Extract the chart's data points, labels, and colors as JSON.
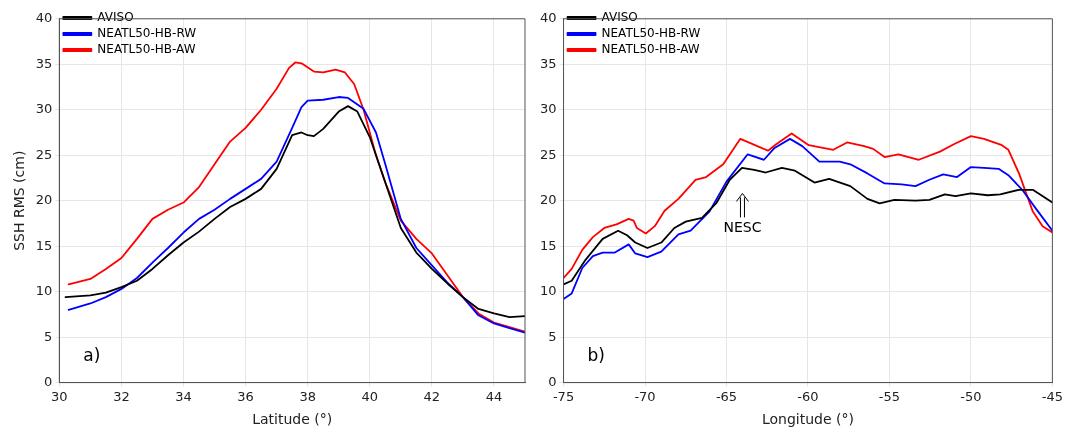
{
  "chart_data": [
    {
      "type": "line",
      "xlabel": "Latitude (°)",
      "ylabel": "SSH RMS (cm)",
      "xlim": [
        30,
        45
      ],
      "xticks": [
        30,
        32,
        34,
        36,
        38,
        40,
        42,
        44
      ],
      "ylim": [
        0,
        40
      ],
      "yticks": [
        0,
        5,
        10,
        15,
        20,
        25,
        30,
        35,
        40
      ],
      "grid": true,
      "legend": "top left",
      "marker": "none",
      "line_style": "solid",
      "annotations": [
        "a)"
      ],
      "series": [
        {
          "name": "AVISO",
          "color": "#000000",
          "x": [
            30.2,
            31,
            31.5,
            32,
            32.5,
            33,
            33.5,
            34,
            34.5,
            35,
            35.5,
            36,
            36.5,
            37,
            37.5,
            37.8,
            38,
            38.2,
            38.5,
            39,
            39.3,
            39.6,
            40,
            40.5,
            41,
            41.5,
            42,
            42.5,
            43,
            43.5,
            44,
            44.5,
            45
          ],
          "values": [
            9.4,
            9.6,
            9.9,
            10.5,
            11.2,
            12.5,
            14,
            15.4,
            16.6,
            18,
            19.3,
            20.2,
            21.3,
            23.5,
            27.2,
            27.5,
            27.2,
            27.1,
            27.9,
            29.8,
            30.4,
            29.8,
            27,
            22,
            17,
            14.3,
            12.5,
            10.9,
            9.4,
            8.1,
            7.6,
            7.2,
            7.3
          ]
        },
        {
          "name": "NEATL50-HB-RW",
          "color": "#0000ff",
          "x": [
            30.3,
            31,
            31.5,
            32,
            32.5,
            33,
            33.5,
            34,
            34.5,
            35,
            35.5,
            36,
            36.5,
            37,
            37.5,
            37.8,
            38,
            38.5,
            39,
            39.3,
            39.8,
            40.2,
            40.5,
            41,
            41.5,
            42,
            42.5,
            43,
            43.5,
            44,
            44.5,
            45
          ],
          "values": [
            8,
            8.7,
            9.4,
            10.3,
            11.5,
            13.2,
            14.8,
            16.5,
            18,
            19,
            20.2,
            21.3,
            22.4,
            24.3,
            28,
            30.3,
            31,
            31.1,
            31.4,
            31.3,
            30.1,
            27.5,
            24,
            18,
            14.8,
            12.9,
            11,
            9.4,
            7.4,
            6.5,
            6,
            5.5
          ]
        },
        {
          "name": "NEATL50-HB-AW",
          "color": "#ff0000",
          "x": [
            30.3,
            31,
            31.5,
            32,
            32.5,
            33,
            33.5,
            34,
            34.5,
            35,
            35.5,
            36,
            36.5,
            37,
            37.4,
            37.6,
            37.8,
            38.2,
            38.5,
            38.9,
            39.2,
            39.5,
            39.8,
            40.2,
            40.5,
            41,
            41.5,
            42,
            42.5,
            43,
            43.5,
            44,
            44.5,
            45
          ],
          "values": [
            10.8,
            11.4,
            12.5,
            13.7,
            15.8,
            18,
            19,
            19.8,
            21.5,
            24,
            26.5,
            28,
            30,
            32.3,
            34.6,
            35.2,
            35.1,
            34.2,
            34.1,
            34.4,
            34.1,
            32.8,
            30,
            25,
            22,
            17.8,
            15.8,
            14.2,
            11.8,
            9.4,
            7.6,
            6.6,
            6.1,
            5.6
          ]
        }
      ]
    },
    {
      "type": "line",
      "xlabel": "Longitude (°)",
      "xlim": [
        -75,
        -45
      ],
      "xticks": [
        -75,
        -70,
        -65,
        -60,
        -55,
        -50,
        -45
      ],
      "ylim": [
        0,
        40
      ],
      "yticks": [
        0,
        5,
        10,
        15,
        20,
        25,
        30,
        35,
        40
      ],
      "grid": true,
      "legend": "top left",
      "marker": "none",
      "line_style": "solid",
      "annotations": [
        "b)",
        "NESC"
      ],
      "series": [
        {
          "name": "AVISO",
          "color": "#000000",
          "x": [
            -75,
            -74.5,
            -73.65,
            -72.6,
            -71.65,
            -71.1,
            -70.6,
            -69.85,
            -69,
            -68.2,
            -67.5,
            -66.5,
            -65.6,
            -64.8,
            -64.05,
            -63.3,
            -62.6,
            -61.6,
            -60.8,
            -59.6,
            -58.7,
            -57.4,
            -56.35,
            -55.6,
            -54.7,
            -53.4,
            -52.55,
            -51.6,
            -50.95,
            -50,
            -48.97,
            -48.2,
            -47.05,
            -46.2,
            -45
          ],
          "values": [
            10.8,
            11.2,
            13.5,
            15.8,
            16.7,
            16.2,
            15.4,
            14.8,
            15.4,
            17,
            17.7,
            18.1,
            19.8,
            22.3,
            23.6,
            23.4,
            23.1,
            23.6,
            23.3,
            22,
            22.4,
            21.6,
            20.2,
            19.7,
            20.1,
            20,
            20.1,
            20.7,
            20.5,
            20.8,
            20.6,
            20.7,
            21.2,
            21.2,
            19.8
          ]
        },
        {
          "name": "NEATL50-HB-RW",
          "color": "#0000ff",
          "x": [
            -75,
            -74.5,
            -73.85,
            -73.2,
            -72.6,
            -71.85,
            -71,
            -70.6,
            -69.85,
            -69,
            -67.95,
            -67.2,
            -66.05,
            -65,
            -63.7,
            -62.7,
            -62.05,
            -61.1,
            -60.35,
            -59.3,
            -58.05,
            -57.4,
            -56.35,
            -55.3,
            -54.25,
            -53.4,
            -52.55,
            -51.7,
            -50.85,
            -50,
            -49.2,
            -48.3,
            -47.7,
            -46.85,
            -46,
            -45
          ],
          "values": [
            9.2,
            9.8,
            12.6,
            13.9,
            14.3,
            14.3,
            15.2,
            14.2,
            13.8,
            14.4,
            16.3,
            16.7,
            18.8,
            22.1,
            25.1,
            24.5,
            25.8,
            26.8,
            26,
            24.3,
            24.3,
            24,
            23,
            21.9,
            21.8,
            21.6,
            22.3,
            22.9,
            22.6,
            23.7,
            23.6,
            23.5,
            22.8,
            21.2,
            19.1,
            16.7
          ]
        },
        {
          "name": "NEATL50-HB-AW",
          "color": "#ff0000",
          "x": [
            -75,
            -74.5,
            -73.85,
            -73.2,
            -72.5,
            -71.75,
            -71,
            -70.7,
            -70.5,
            -69.95,
            -69.4,
            -68.8,
            -67.95,
            -66.9,
            -66.25,
            -65.2,
            -64.15,
            -63.5,
            -62.45,
            -61.95,
            -61,
            -59.95,
            -58.45,
            -57.6,
            -56.55,
            -56,
            -55.3,
            -54.45,
            -53.2,
            -51.9,
            -51.05,
            -50,
            -49.2,
            -48.1,
            -47.7,
            -47.05,
            -46.2,
            -45.6,
            -45
          ],
          "values": [
            11.5,
            12.5,
            14.6,
            16,
            17,
            17.4,
            18,
            17.8,
            17,
            16.4,
            17.2,
            18.9,
            20.2,
            22.3,
            22.6,
            24,
            26.8,
            26.3,
            25.5,
            26.2,
            27.4,
            26.1,
            25.6,
            26.4,
            26,
            25.7,
            24.8,
            25.1,
            24.5,
            25.4,
            26.2,
            27.1,
            26.8,
            26.1,
            25.6,
            23,
            18.8,
            17.2,
            16.5
          ]
        }
      ]
    }
  ]
}
